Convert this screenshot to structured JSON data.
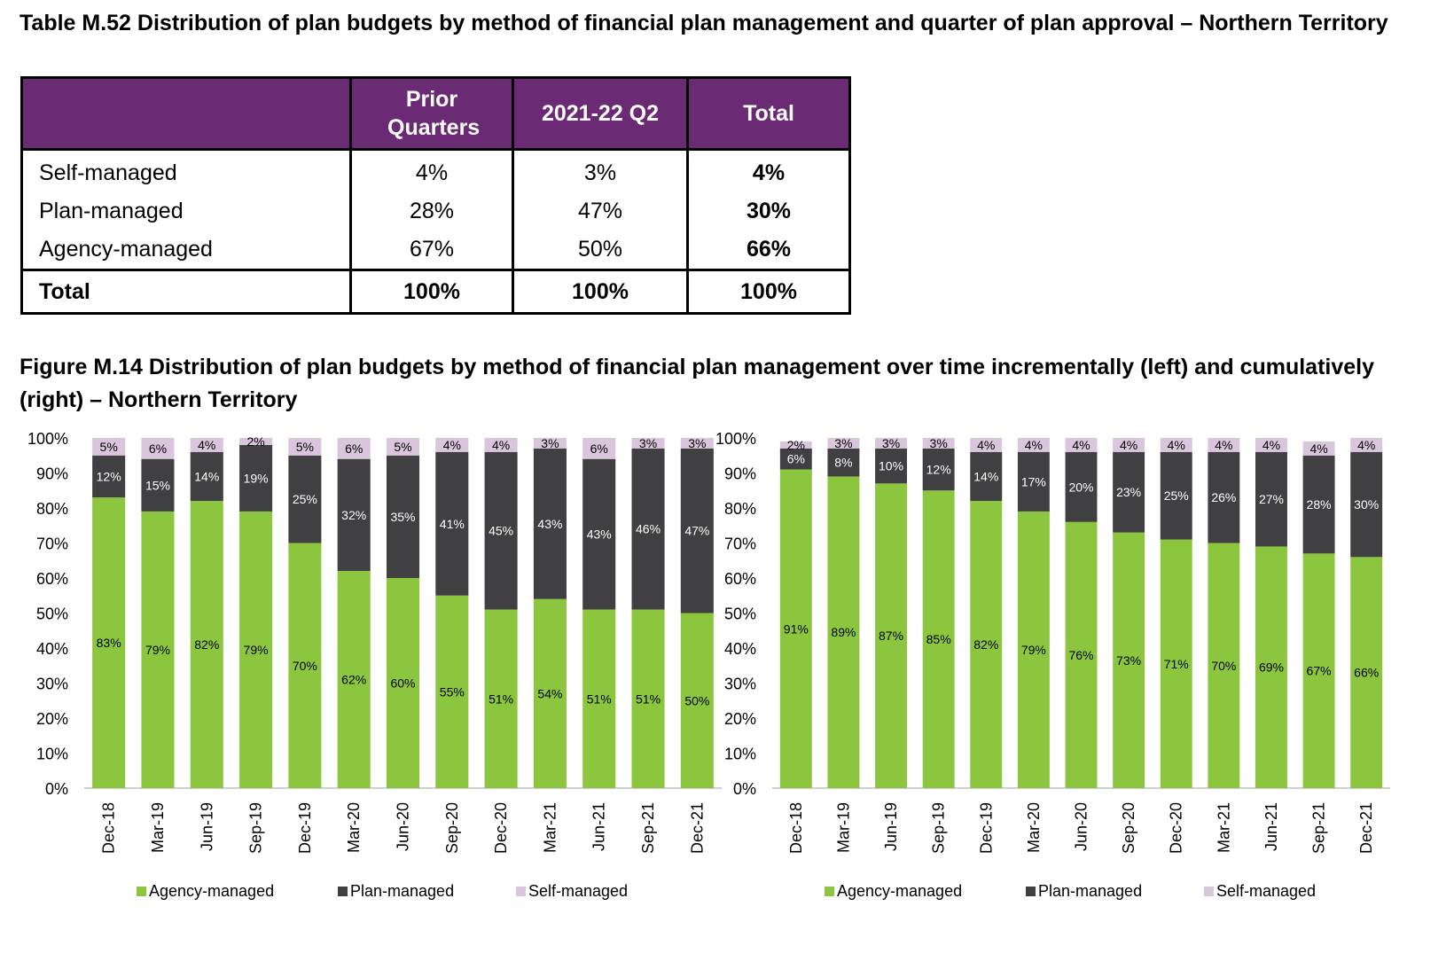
{
  "table": {
    "title": "Table M.52 Distribution of plan budgets by method of financial plan management and quarter of plan approval – Northern Territory",
    "headers": [
      "",
      "Prior Quarters",
      "2021-22 Q2",
      "Total"
    ],
    "rows": [
      {
        "label": "Self-managed",
        "prior": "4%",
        "q2": "3%",
        "total": "4%"
      },
      {
        "label": "Plan-managed",
        "prior": "28%",
        "q2": "47%",
        "total": "30%"
      },
      {
        "label": "Agency-managed",
        "prior": "67%",
        "q2": "50%",
        "total": "66%"
      }
    ],
    "total_row": {
      "label": "Total",
      "prior": "100%",
      "q2": "100%",
      "total": "100%"
    }
  },
  "figure": {
    "title": "Figure M.14 Distribution of plan budgets by method of financial plan management over time incrementally (left) and cumulatively (right) – Northern Territory"
  },
  "colors": {
    "header_purple": "#6b2a74",
    "agency": "#8cc63f",
    "plan": "#404042",
    "self": "#d9c5dc"
  },
  "chart_data": [
    {
      "type": "bar",
      "stacked": true,
      "categories": [
        "Dec-18",
        "Mar-19",
        "Jun-19",
        "Sep-19",
        "Dec-19",
        "Mar-20",
        "Jun-20",
        "Sep-20",
        "Dec-20",
        "Mar-21",
        "Jun-21",
        "Sep-21",
        "Dec-21"
      ],
      "series": [
        {
          "name": "Agency-managed",
          "values": [
            83,
            79,
            82,
            79,
            70,
            62,
            60,
            55,
            51,
            54,
            51,
            51,
            50
          ]
        },
        {
          "name": "Plan-managed",
          "values": [
            12,
            15,
            14,
            19,
            25,
            32,
            35,
            41,
            45,
            43,
            43,
            46,
            47
          ]
        },
        {
          "name": "Self-managed",
          "values": [
            5,
            6,
            4,
            2,
            5,
            6,
            5,
            4,
            4,
            3,
            6,
            3,
            3
          ]
        }
      ],
      "yticks": [
        "0%",
        "10%",
        "20%",
        "30%",
        "40%",
        "50%",
        "60%",
        "70%",
        "80%",
        "90%",
        "100%"
      ],
      "ylim": [
        0,
        100
      ],
      "legend": "bottom"
    },
    {
      "type": "bar",
      "stacked": true,
      "categories": [
        "Dec-18",
        "Mar-19",
        "Jun-19",
        "Sep-19",
        "Dec-19",
        "Mar-20",
        "Jun-20",
        "Sep-20",
        "Dec-20",
        "Mar-21",
        "Jun-21",
        "Sep-21",
        "Dec-21"
      ],
      "series": [
        {
          "name": "Agency-managed",
          "values": [
            91,
            89,
            87,
            85,
            82,
            79,
            76,
            73,
            71,
            70,
            69,
            67,
            66
          ]
        },
        {
          "name": "Plan-managed",
          "values": [
            6,
            8,
            10,
            12,
            14,
            17,
            20,
            23,
            25,
            26,
            27,
            28,
            30
          ]
        },
        {
          "name": "Self-managed",
          "values": [
            2,
            3,
            3,
            3,
            4,
            4,
            4,
            4,
            4,
            4,
            4,
            4,
            4
          ]
        }
      ],
      "yticks": [
        "0%",
        "10%",
        "20%",
        "30%",
        "40%",
        "50%",
        "60%",
        "70%",
        "80%",
        "90%",
        "100%"
      ],
      "ylim": [
        0,
        100
      ],
      "legend": "bottom"
    }
  ]
}
